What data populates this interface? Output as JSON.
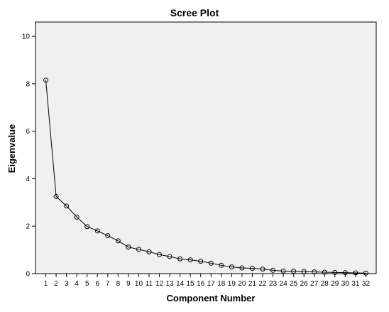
{
  "chart_data": {
    "type": "line",
    "title": "Scree Plot",
    "xlabel": "Component Number",
    "ylabel": "Eigenvalue",
    "x": [
      1,
      2,
      3,
      4,
      5,
      6,
      7,
      8,
      9,
      10,
      11,
      12,
      13,
      14,
      15,
      16,
      17,
      18,
      19,
      20,
      21,
      22,
      23,
      24,
      25,
      26,
      27,
      28,
      29,
      30,
      31,
      32
    ],
    "y": [
      8.15,
      3.25,
      2.85,
      2.38,
      1.98,
      1.8,
      1.6,
      1.38,
      1.12,
      1.02,
      0.92,
      0.8,
      0.72,
      0.62,
      0.58,
      0.52,
      0.44,
      0.35,
      0.28,
      0.24,
      0.22,
      0.19,
      0.14,
      0.11,
      0.1,
      0.09,
      0.07,
      0.06,
      0.05,
      0.04,
      0.03,
      0.02
    ],
    "xticks": [
      "1",
      "2",
      "3",
      "4",
      "5",
      "6",
      "7",
      "8",
      "9",
      "10",
      "11",
      "12",
      "13",
      "14",
      "15",
      "16",
      "17",
      "18",
      "19",
      "20",
      "21",
      "22",
      "23",
      "24",
      "25",
      "26",
      "27",
      "28",
      "29",
      "30",
      "31",
      "32"
    ],
    "yticks": [
      0,
      2,
      4,
      6,
      8,
      10
    ],
    "ylim": [
      0,
      10.6
    ],
    "xlim": [
      0,
      33
    ],
    "grid": false,
    "marker": "open-circle",
    "colors": {
      "plot_bg": "#f0f0f0",
      "line": "#000000",
      "axis": "#000000"
    }
  }
}
